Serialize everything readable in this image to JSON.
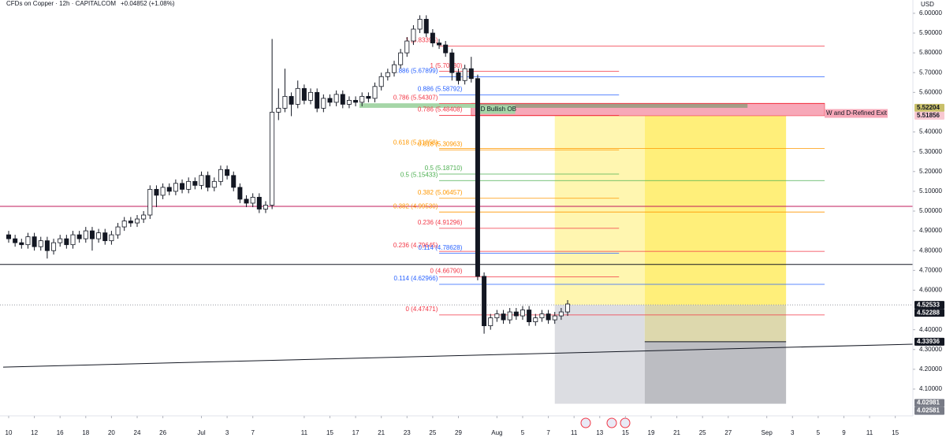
{
  "chart_data": {
    "type": "candlestick",
    "title": "CFDs on Copper · 12h · CAPITALCOM",
    "change": "+0.04852 (+1.08%)",
    "currency": "USD",
    "ylim": [
      3.9645,
      6.0673
    ],
    "xlim": [
      -0.675,
      70.37
    ],
    "yticks": [
      {
        "value": 6.0,
        "label": "6.00000"
      },
      {
        "value": 5.9,
        "label": "5.90000"
      },
      {
        "value": 5.8,
        "label": "5.80000"
      },
      {
        "value": 5.7,
        "label": "5.70000"
      },
      {
        "value": 5.6,
        "label": "5.60000"
      },
      {
        "value": 5.4,
        "label": "5.40000"
      },
      {
        "value": 5.3,
        "label": "5.30000"
      },
      {
        "value": 5.2,
        "label": "5.20000"
      },
      {
        "value": 5.1,
        "label": "5.10000"
      },
      {
        "value": 5.0,
        "label": "5.00000"
      },
      {
        "value": 4.9,
        "label": "4.90000"
      },
      {
        "value": 4.8,
        "label": "4.80000"
      },
      {
        "value": 4.7,
        "label": "4.70000"
      },
      {
        "value": 4.6,
        "label": "4.60000"
      },
      {
        "value": 4.4,
        "label": "4.40000"
      },
      {
        "value": 4.3,
        "label": "4.30000"
      },
      {
        "value": 4.2,
        "label": "4.20000"
      },
      {
        "value": 4.1,
        "label": "4.10000"
      }
    ],
    "xticks": [
      {
        "value": 0,
        "label": "10"
      },
      {
        "value": 2,
        "label": "12"
      },
      {
        "value": 4,
        "label": "16"
      },
      {
        "value": 6,
        "label": "18"
      },
      {
        "value": 8,
        "label": "20"
      },
      {
        "value": 10,
        "label": "24"
      },
      {
        "value": 12,
        "label": "26"
      },
      {
        "value": 15,
        "label": "Jul"
      },
      {
        "value": 17,
        "label": "3"
      },
      {
        "value": 19,
        "label": "7"
      },
      {
        "value": 23,
        "label": "11"
      },
      {
        "value": 25,
        "label": "15"
      },
      {
        "value": 27,
        "label": "17"
      },
      {
        "value": 29,
        "label": "21"
      },
      {
        "value": 31,
        "label": "23"
      },
      {
        "value": 33,
        "label": "25"
      },
      {
        "value": 35,
        "label": "29"
      },
      {
        "value": 38,
        "label": "Aug"
      },
      {
        "value": 40,
        "label": "5"
      },
      {
        "value": 42,
        "label": "7"
      },
      {
        "value": 44,
        "label": "11"
      },
      {
        "value": 46,
        "label": "13"
      },
      {
        "value": 48,
        "label": "15"
      },
      {
        "value": 50,
        "label": "19"
      },
      {
        "value": 52,
        "label": "21"
      },
      {
        "value": 54,
        "label": "25"
      },
      {
        "value": 56,
        "label": "27"
      },
      {
        "value": 59,
        "label": "Sep"
      },
      {
        "value": 61,
        "label": "3"
      },
      {
        "value": 63,
        "label": "5"
      },
      {
        "value": 65,
        "label": "9"
      },
      {
        "value": 67,
        "label": "11"
      },
      {
        "value": 69,
        "label": "15"
      }
    ],
    "candles": [
      [
        4.88,
        4.9,
        4.84,
        4.86
      ],
      [
        4.86,
        4.88,
        4.82,
        4.84
      ],
      [
        4.84,
        4.86,
        4.81,
        4.83
      ],
      [
        4.83,
        4.89,
        4.81,
        4.87
      ],
      [
        4.87,
        4.89,
        4.8,
        4.82
      ],
      [
        4.82,
        4.87,
        4.8,
        4.85
      ],
      [
        4.85,
        4.87,
        4.76,
        4.8
      ],
      [
        4.8,
        4.86,
        4.78,
        4.84
      ],
      [
        4.84,
        4.88,
        4.82,
        4.86
      ],
      [
        4.86,
        4.88,
        4.81,
        4.83
      ],
      [
        4.83,
        4.9,
        4.81,
        4.88
      ],
      [
        4.88,
        4.9,
        4.84,
        4.86
      ],
      [
        4.86,
        4.92,
        4.84,
        4.9
      ],
      [
        4.9,
        4.92,
        4.8,
        4.86
      ],
      [
        4.86,
        4.91,
        4.84,
        4.89
      ],
      [
        4.89,
        4.91,
        4.83,
        4.85
      ],
      [
        4.85,
        4.9,
        4.83,
        4.88
      ],
      [
        4.88,
        4.94,
        4.86,
        4.92
      ],
      [
        4.92,
        4.97,
        4.9,
        4.95
      ],
      [
        4.95,
        4.97,
        4.92,
        4.94
      ],
      [
        4.94,
        4.98,
        4.92,
        4.96
      ],
      [
        4.96,
        5.0,
        4.94,
        4.98
      ],
      [
        4.98,
        5.13,
        4.96,
        5.11
      ],
      [
        5.11,
        5.13,
        5.02,
        5.08
      ],
      [
        5.08,
        5.14,
        5.06,
        5.12
      ],
      [
        5.12,
        5.14,
        5.08,
        5.1
      ],
      [
        5.1,
        5.16,
        5.08,
        5.14
      ],
      [
        5.14,
        5.16,
        5.09,
        5.11
      ],
      [
        5.11,
        5.17,
        5.09,
        5.15
      ],
      [
        5.15,
        5.17,
        5.11,
        5.13
      ],
      [
        5.13,
        5.2,
        5.11,
        5.18
      ],
      [
        5.18,
        5.2,
        5.1,
        5.12
      ],
      [
        5.12,
        5.17,
        5.1,
        5.15
      ],
      [
        5.15,
        5.23,
        5.13,
        5.21
      ],
      [
        5.21,
        5.23,
        5.16,
        5.18
      ],
      [
        5.18,
        5.2,
        5.1,
        5.12
      ],
      [
        5.12,
        5.14,
        5.04,
        5.06
      ],
      [
        5.06,
        5.08,
        5.02,
        5.04
      ],
      [
        5.04,
        5.09,
        5.02,
        5.07
      ],
      [
        5.07,
        5.09,
        4.99,
        5.01
      ],
      [
        5.01,
        5.05,
        4.99,
        5.03
      ],
      [
        5.03,
        5.87,
        5.01,
        5.5
      ],
      [
        5.5,
        5.62,
        5.46,
        5.52
      ],
      [
        5.52,
        5.72,
        5.5,
        5.58
      ],
      [
        5.58,
        5.6,
        5.48,
        5.54
      ],
      [
        5.54,
        5.66,
        5.52,
        5.62
      ],
      [
        5.62,
        5.64,
        5.54,
        5.56
      ],
      [
        5.56,
        5.62,
        5.54,
        5.6
      ],
      [
        5.6,
        5.62,
        5.5,
        5.52
      ],
      [
        5.52,
        5.59,
        5.5,
        5.57
      ],
      [
        5.57,
        5.59,
        5.53,
        5.55
      ],
      [
        5.55,
        5.61,
        5.53,
        5.59
      ],
      [
        5.59,
        5.61,
        5.52,
        5.54
      ],
      [
        5.54,
        5.58,
        5.52,
        5.56
      ],
      [
        5.56,
        5.58,
        5.53,
        5.55
      ],
      [
        5.55,
        5.6,
        5.53,
        5.58
      ],
      [
        5.58,
        5.6,
        5.55,
        5.57
      ],
      [
        5.57,
        5.65,
        5.55,
        5.63
      ],
      [
        5.63,
        5.7,
        5.61,
        5.68
      ],
      [
        5.68,
        5.72,
        5.66,
        5.7
      ],
      [
        5.7,
        5.76,
        5.68,
        5.74
      ],
      [
        5.74,
        5.82,
        5.72,
        5.8
      ],
      [
        5.8,
        5.88,
        5.78,
        5.86
      ],
      [
        5.86,
        5.94,
        5.84,
        5.92
      ],
      [
        5.92,
        5.99,
        5.9,
        5.97
      ],
      [
        5.97,
        5.99,
        5.88,
        5.9
      ],
      [
        5.9,
        5.92,
        5.83,
        5.85
      ],
      [
        5.85,
        5.87,
        5.82,
        5.84
      ],
      [
        5.84,
        5.86,
        5.78,
        5.8
      ],
      [
        5.8,
        5.82,
        5.66,
        5.7
      ],
      [
        5.7,
        5.72,
        5.64,
        5.66
      ],
      [
        5.66,
        5.74,
        5.64,
        5.72
      ],
      [
        5.72,
        5.78,
        5.65,
        5.67
      ],
      [
        5.67,
        5.69,
        4.65,
        4.67
      ],
      [
        4.67,
        4.69,
        4.38,
        4.42
      ],
      [
        4.42,
        4.48,
        4.4,
        4.46
      ],
      [
        4.46,
        4.5,
        4.44,
        4.48
      ],
      [
        4.48,
        4.5,
        4.43,
        4.45
      ],
      [
        4.45,
        4.51,
        4.43,
        4.49
      ],
      [
        4.49,
        4.51,
        4.45,
        4.47
      ],
      [
        4.47,
        4.52,
        4.45,
        4.5
      ],
      [
        4.5,
        4.52,
        4.42,
        4.44
      ],
      [
        4.44,
        4.48,
        4.42,
        4.46
      ],
      [
        4.46,
        4.5,
        4.44,
        4.48
      ],
      [
        4.48,
        4.5,
        4.43,
        4.45
      ],
      [
        4.45,
        4.49,
        4.43,
        4.47
      ],
      [
        4.47,
        4.51,
        4.45,
        4.49
      ],
      [
        4.49,
        4.55,
        4.47,
        4.53
      ]
    ],
    "levels": [
      {
        "label": "1 (5.83395)",
        "price": 5.83395,
        "color": "#f23645",
        "span": "long"
      },
      {
        "label": "1 (5.70630)",
        "price": 5.7063,
        "color": "#f23645",
        "span": "short"
      },
      {
        "label": "0.886 (5.67899)",
        "price": 5.67899,
        "color": "#2962ff",
        "span": "long"
      },
      {
        "label": "0.886 (5.58792)",
        "price": 5.58792,
        "color": "#2962ff",
        "span": "short"
      },
      {
        "label": "0.786 (5.54307)",
        "price": 5.54307,
        "color": "#f23645",
        "span": "long"
      },
      {
        "label": "0.786 (5.48408)",
        "price": 5.48408,
        "color": "#f23645",
        "span": "short"
      },
      {
        "label": "0.618 (5.31658)",
        "price": 5.31658,
        "color": "#ff9800",
        "span": "long"
      },
      {
        "label": "0.618 (5.30963)",
        "price": 5.30963,
        "color": "#ff9800",
        "span": "short"
      },
      {
        "label": "0.5 (5.18710)",
        "price": 5.1871,
        "color": "#4caf50",
        "span": "short"
      },
      {
        "label": "0.5 (5.15433)",
        "price": 5.15433,
        "color": "#4caf50",
        "span": "long"
      },
      {
        "label": "0.382 (5.06457)",
        "price": 5.06457,
        "color": "#ff9800",
        "span": "short"
      },
      {
        "label": "0.382 (4.99530)",
        "price": 4.9953,
        "color": "#ff9800",
        "span": "long"
      },
      {
        "label": "0.236 (4.91296)",
        "price": 4.91296,
        "color": "#f23645",
        "span": "short"
      },
      {
        "label": "0.236 (4.79645)",
        "price": 4.79645,
        "color": "#f23645",
        "span": "long"
      },
      {
        "label": "0.114 (4.78628)",
        "price": 4.78628,
        "color": "#2962ff",
        "span": "short"
      },
      {
        "label": "0 (4.66790)",
        "price": 4.6679,
        "color": "#f23645",
        "span": "short"
      },
      {
        "label": "0.114 (4.62966)",
        "price": 4.62966,
        "color": "#2962ff",
        "span": "long"
      },
      {
        "label": "0 (4.47471)",
        "price": 4.47471,
        "color": "#f23645",
        "span": "long"
      }
    ],
    "horizontal_lines": [
      {
        "price": 5.024,
        "color": "#c2185b"
      },
      {
        "price": 4.73,
        "color": "#131722"
      }
    ],
    "trendline": {
      "start": 4.211,
      "end": 4.327,
      "color": "#131722"
    },
    "zones": [
      {
        "label": "W and D-Refined Exit",
        "top": 5.545,
        "bottom": 5.482,
        "color": "#f7a8b8"
      },
      {
        "label": "D Bullish OB",
        "top": 5.545,
        "bottom": 5.522,
        "color": "#a5d6a7"
      }
    ],
    "flags": [
      {
        "value": 5.52204,
        "color": "#c9c06a",
        "text_color": "#131722"
      },
      {
        "value": 5.51856,
        "color": "#f8c8d2",
        "text_color": "#131722"
      },
      {
        "value": 4.52533,
        "color": "#131722",
        "text_color": "#ffffff"
      },
      {
        "value": 4.52288,
        "color": "#131722",
        "text_color": "#ffffff"
      },
      {
        "value": 4.33936,
        "color": "#131722",
        "text_color": "#ffffff"
      },
      {
        "value": 4.02981,
        "color": "#787b86",
        "text_color": "#ffffff"
      },
      {
        "value": 4.02581,
        "color": "#787b86",
        "text_color": "#ffffff"
      }
    ]
  }
}
